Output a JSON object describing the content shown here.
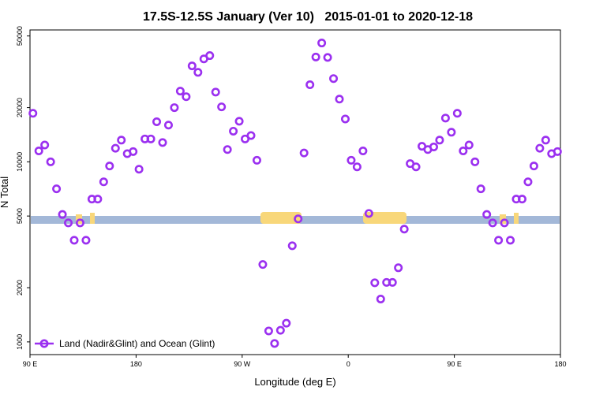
{
  "chart_data": {
    "type": "scatter",
    "title": "17.5S-12.5S January (Ver 10)   2015-01-01 to 2020-12-18",
    "xlabel": "Longitude (deg E)",
    "ylabel": "N Total",
    "log_y": true,
    "legend": "lower left",
    "xlim": [
      90,
      540
    ],
    "xticks": [
      {
        "value": 90,
        "label": "90 E"
      },
      180,
      {
        "value": 270,
        "label": "90 W"
      },
      {
        "value": 360,
        "label": "0"
      },
      {
        "value": 450,
        "label": "90 E"
      },
      {
        "value": 540,
        "label": "180"
      }
    ],
    "ylim": [
      850,
      54000
    ],
    "yticks": [
      1000,
      2000,
      5000,
      10000,
      20000,
      50000
    ],
    "series": [
      {
        "name": "Land (Nadir&Glint) and Ocean (Glint)",
        "color": "#9b30f0",
        "x": [
          92.5,
          97.5,
          102.5,
          107.5,
          112.5,
          117.5,
          122.5,
          127.5,
          132.5,
          137.5,
          142.5,
          147.5,
          152.5,
          157.5,
          162.5,
          167.5,
          172.5,
          177.5,
          182.5,
          187.5,
          192.5,
          197.5,
          202.5,
          207.5,
          212.5,
          217.5,
          222.5,
          227.5,
          232.5,
          237.5,
          242.5,
          247.5,
          252.5,
          257.5,
          262.5,
          267.5,
          272.5,
          277.5,
          282.5,
          287.5,
          292.5,
          297.5,
          302.5,
          307.5,
          312.5,
          317.5,
          322.5,
          327.5,
          332.5,
          337.5,
          342.5,
          347.5,
          352.5,
          357.5,
          362.5,
          367.5,
          372.5,
          377.5,
          382.5,
          387.5,
          392.5,
          397.5,
          402.5,
          407.5,
          412.5,
          417.5,
          422.5,
          427.5,
          432.5,
          437.5,
          442.5,
          447.5,
          452.5,
          457.5,
          462.5,
          467.5,
          472.5,
          477.5,
          482.5,
          487.5,
          492.5,
          497.5,
          502.5,
          507.5,
          512.5,
          517.5,
          522.5,
          527.5,
          532.5,
          537.5
        ],
        "values": [
          18600,
          11500,
          12400,
          10000,
          7080,
          5100,
          4580,
          3670,
          4580,
          3670,
          6210,
          6210,
          7740,
          9480,
          11900,
          13200,
          11100,
          11400,
          9100,
          13400,
          13400,
          16700,
          12800,
          16000,
          20000,
          24700,
          23000,
          34100,
          31400,
          37300,
          38900,
          24400,
          20200,
          11700,
          14800,
          16800,
          13400,
          14000,
          10200,
          2690,
          1150,
          980,
          1160,
          1270,
          3420,
          4820,
          11200,
          26800,
          38200,
          45700,
          38000,
          29000,
          22300,
          17300,
          10200,
          9380,
          11500,
          5170,
          2130,
          1730,
          2140,
          2140,
          2580,
          4230,
          9770,
          9380,
          12200,
          11700,
          12100,
          13200,
          17500,
          14600,
          18600,
          11500,
          12400,
          10000,
          7080,
          5100,
          4580,
          3670,
          4580,
          3670,
          6210,
          6210,
          7740,
          9480,
          11900,
          13200,
          11100,
          11400
        ]
      }
    ]
  }
}
